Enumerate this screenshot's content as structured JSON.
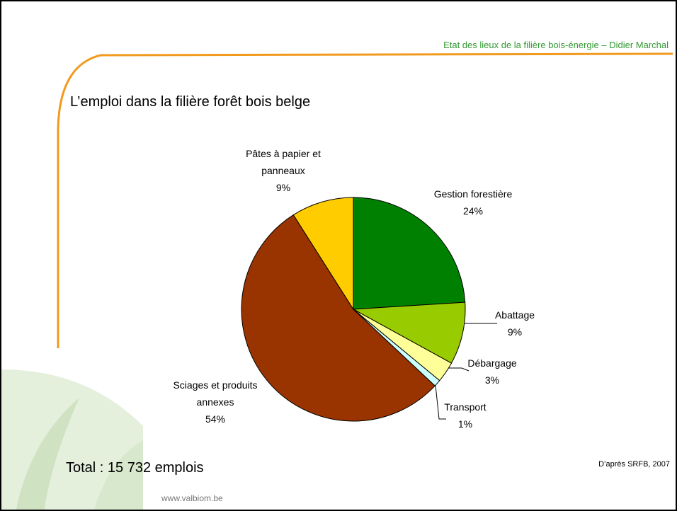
{
  "header": {
    "subtitle": "Etat des lieux de la filière bois-énergie – Didier Marchal"
  },
  "chart_data": {
    "type": "pie",
    "title": "L’emploi dans la filière forêt bois belge",
    "categories": [
      "Gestion forestière",
      "Abattage",
      "Débargage",
      "Transport",
      "Sciages et produits annexes",
      "Pâtes à papier et panneaux"
    ],
    "values": [
      24,
      9,
      3,
      1,
      54,
      9
    ],
    "value_labels": [
      "24%",
      "9%",
      "3%",
      "1%",
      "54%",
      "9%"
    ],
    "colors": [
      "#008000",
      "#99cc00",
      "#ffff99",
      "#ccffff",
      "#993300",
      "#ffcc00"
    ]
  },
  "footer": {
    "total": "Total : 15 732 emplois",
    "source": "D’après SRFB, 2007",
    "url": "www.valbiom.be"
  }
}
